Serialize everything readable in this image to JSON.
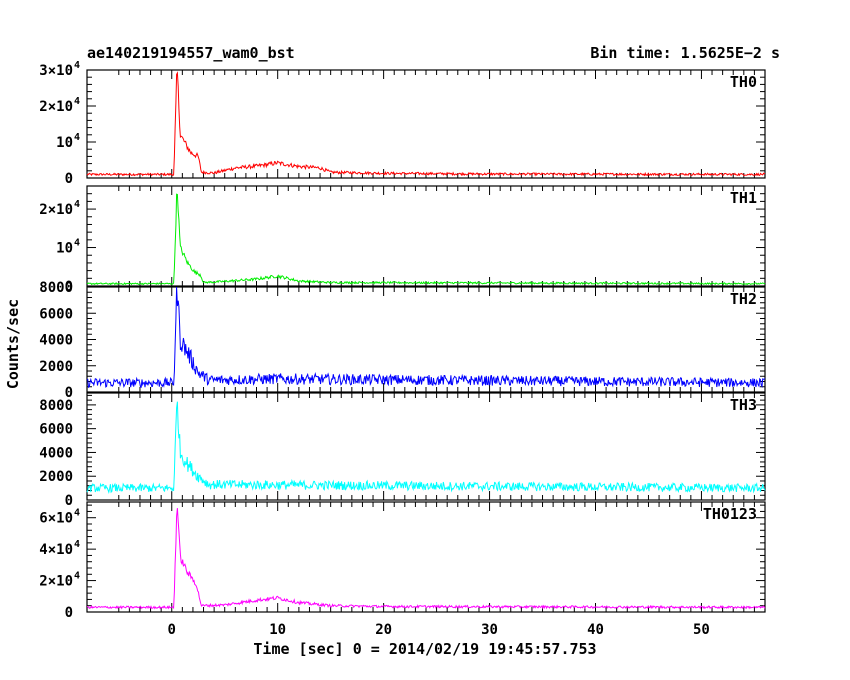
{
  "title_left": "ae140219194557_wam0_bst",
  "title_right": "Bin time: 1.5625E−2 s",
  "ylabel": "Counts/sec",
  "xlabel": "Time [sec] 0 = 2014/02/19 19:45:57.753",
  "chart_data": {
    "type": "line",
    "xlim": [
      -8,
      56
    ],
    "x_ticks": [
      0,
      10,
      20,
      30,
      40,
      50
    ],
    "x_tick_labels": [
      "0",
      "10",
      "20",
      "30",
      "40",
      "50"
    ],
    "series": [
      {
        "name": "TH0",
        "color": "#ff0000",
        "ylim": [
          0,
          30000
        ],
        "y_ticks": [
          0,
          10000,
          20000,
          30000
        ],
        "y_tick_labels": [
          {
            "m": "0",
            "e": ""
          },
          {
            "m": "10",
            "e": "4"
          },
          {
            "m": "2×10",
            "e": "4"
          },
          {
            "m": "3×10",
            "e": "4"
          }
        ],
        "data_start": -8.0,
        "baseline": 1000,
        "noise": 300,
        "points": [
          [
            -8,
            1000
          ],
          [
            0.2,
            1000
          ],
          [
            0.5,
            31000
          ],
          [
            0.8,
            12000
          ],
          [
            1.2,
            10000
          ],
          [
            1.8,
            7000
          ],
          [
            2.5,
            6000
          ],
          [
            2.8,
            1600
          ],
          [
            4,
            1400
          ],
          [
            6,
            2800
          ],
          [
            8,
            3300
          ],
          [
            10,
            4200
          ],
          [
            12,
            3200
          ],
          [
            14,
            2800
          ],
          [
            15,
            1600
          ],
          [
            20,
            1300
          ],
          [
            30,
            1100
          ],
          [
            56,
            1000
          ]
        ]
      },
      {
        "name": "TH1",
        "color": "#00ee00",
        "ylim": [
          0,
          26000
        ],
        "y_ticks": [
          0,
          10000,
          20000
        ],
        "y_tick_labels": [
          {
            "m": "0",
            "e": ""
          },
          {
            "m": "10",
            "e": "4"
          },
          {
            "m": "2×10",
            "e": "4"
          }
        ],
        "data_start": -8.0,
        "baseline": 600,
        "noise": 200,
        "points": [
          [
            -8,
            600
          ],
          [
            0.2,
            600
          ],
          [
            0.5,
            26000
          ],
          [
            0.8,
            10000
          ],
          [
            1.5,
            6000
          ],
          [
            2.2,
            3500
          ],
          [
            2.7,
            3000
          ],
          [
            3,
            900
          ],
          [
            5,
            1200
          ],
          [
            8,
            1800
          ],
          [
            10,
            2600
          ],
          [
            12,
            1300
          ],
          [
            15,
            900
          ],
          [
            56,
            600
          ]
        ]
      },
      {
        "name": "TH2",
        "color": "#0000ff",
        "ylim": [
          0,
          8000
        ],
        "y_ticks": [
          0,
          2000,
          4000,
          6000,
          8000
        ],
        "y_tick_labels": [
          {
            "m": "0",
            "e": ""
          },
          {
            "m": "2000",
            "e": ""
          },
          {
            "m": "4000",
            "e": ""
          },
          {
            "m": "6000",
            "e": ""
          },
          {
            "m": "8000",
            "e": ""
          }
        ],
        "data_start": -8.0,
        "baseline": 700,
        "noise": 350,
        "points": [
          [
            -8,
            700
          ],
          [
            0.2,
            700
          ],
          [
            0.5,
            8100
          ],
          [
            0.8,
            4000
          ],
          [
            1.5,
            3000
          ],
          [
            2.5,
            1500
          ],
          [
            3.5,
            900
          ],
          [
            10,
            1000
          ],
          [
            56,
            700
          ]
        ]
      },
      {
        "name": "TH3",
        "color": "#00ffff",
        "ylim": [
          0,
          9000
        ],
        "y_ticks": [
          0,
          2000,
          4000,
          6000,
          8000
        ],
        "y_tick_labels": [
          {
            "m": "0",
            "e": ""
          },
          {
            "m": "2000",
            "e": ""
          },
          {
            "m": "4000",
            "e": ""
          },
          {
            "m": "6000",
            "e": ""
          },
          {
            "m": "8000",
            "e": ""
          }
        ],
        "data_start": -8.0,
        "baseline": 1000,
        "noise": 350,
        "points": [
          [
            -8,
            1000
          ],
          [
            0.2,
            1000
          ],
          [
            0.5,
            8500
          ],
          [
            0.8,
            4000
          ],
          [
            1.5,
            3000
          ],
          [
            2.5,
            2000
          ],
          [
            3.5,
            1300
          ],
          [
            56,
            1000
          ]
        ]
      },
      {
        "name": "TH0123",
        "color": "#ff00ff",
        "ylim": [
          0,
          70000
        ],
        "y_ticks": [
          0,
          20000,
          40000,
          60000
        ],
        "y_tick_labels": [
          {
            "m": "0",
            "e": ""
          },
          {
            "m": "2×10",
            "e": "4"
          },
          {
            "m": "4×10",
            "e": "4"
          },
          {
            "m": "6×10",
            "e": "4"
          }
        ],
        "data_start": -8.0,
        "baseline": 3000,
        "noise": 700,
        "points": [
          [
            -8,
            3000
          ],
          [
            0.2,
            3000
          ],
          [
            0.5,
            70000
          ],
          [
            0.8,
            35000
          ],
          [
            1.5,
            25000
          ],
          [
            2.3,
            18000
          ],
          [
            2.8,
            4000
          ],
          [
            5,
            4500
          ],
          [
            8,
            7500
          ],
          [
            10,
            9000
          ],
          [
            12,
            6000
          ],
          [
            15,
            4000
          ],
          [
            20,
            3500
          ],
          [
            56,
            3000
          ]
        ]
      }
    ]
  }
}
